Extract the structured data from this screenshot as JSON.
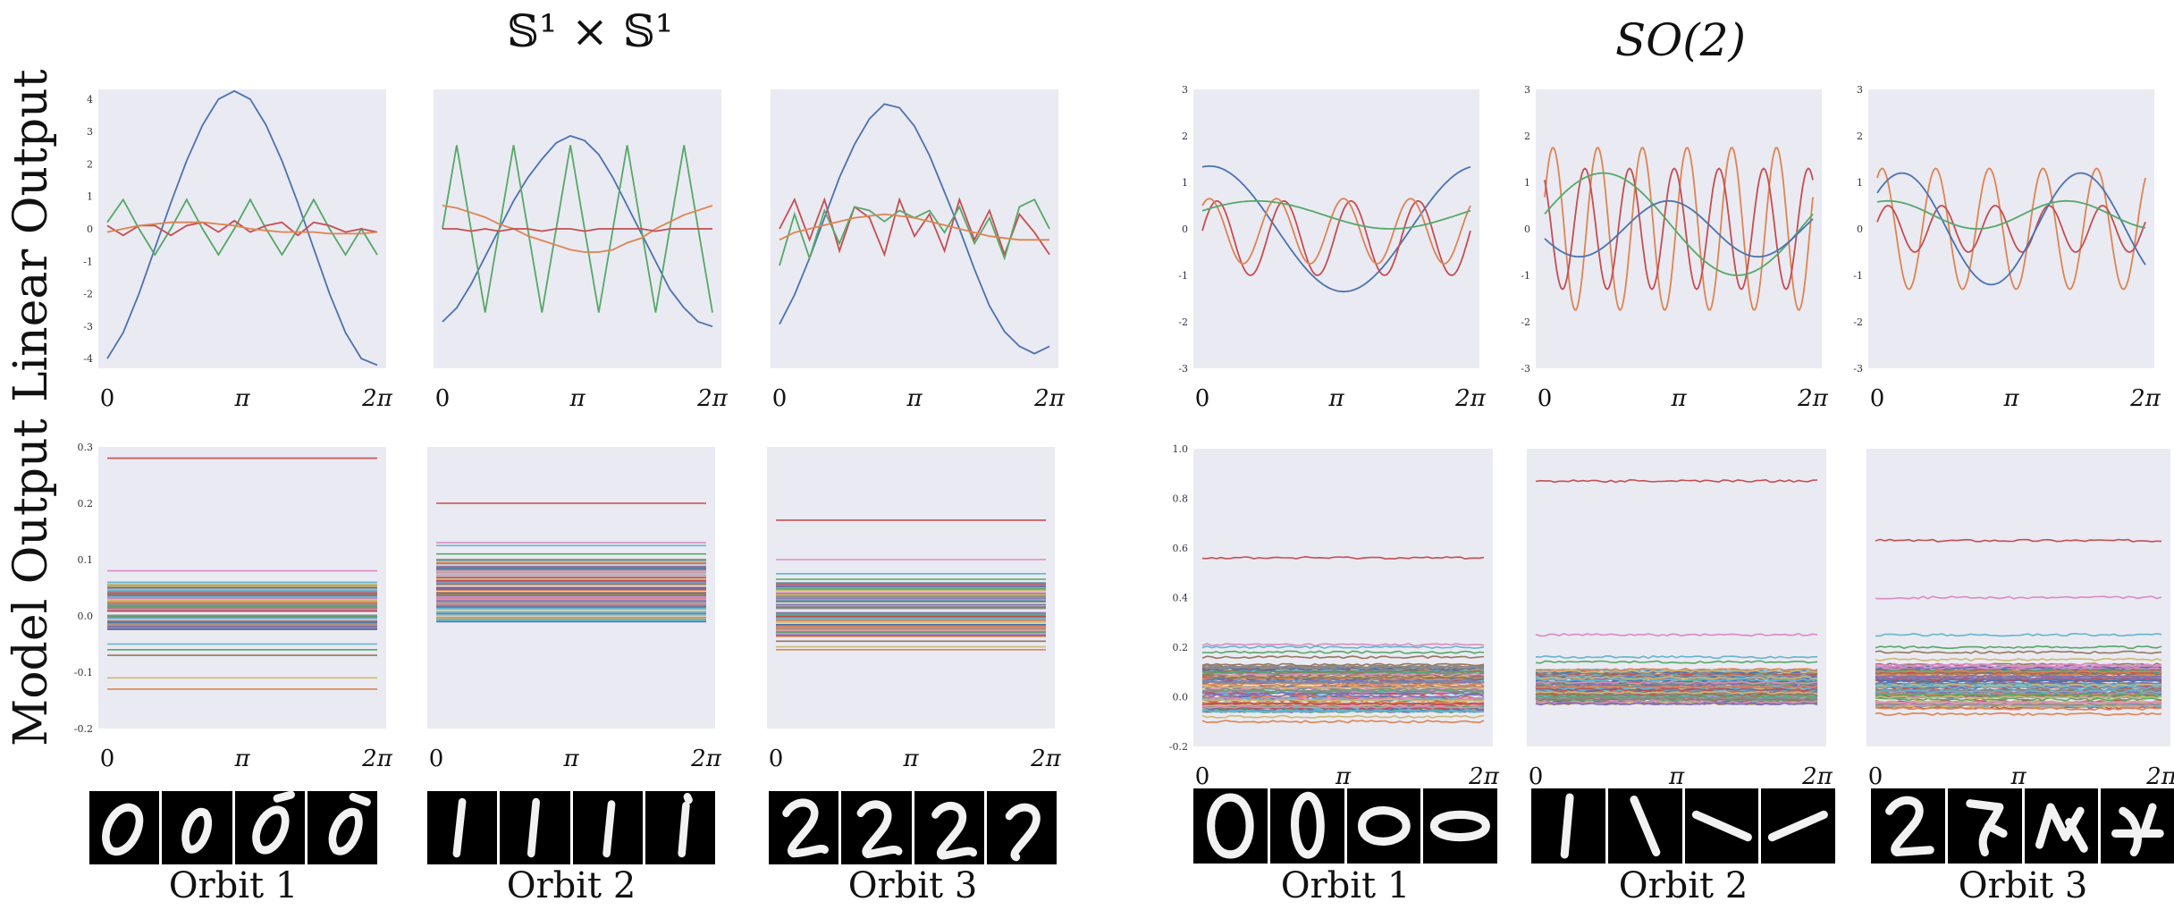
{
  "figure": {
    "left_title": "𝕊¹ × 𝕊¹",
    "right_title": "SO(2)",
    "row_labels": [
      "Linear Output",
      "Model Output"
    ],
    "orbit_labels": [
      "Orbit 1",
      "Orbit 2",
      "Orbit 3"
    ],
    "x_ticks": [
      "0",
      "π",
      "2π"
    ]
  },
  "colors": {
    "plot_bg": "#eaeaf2",
    "series": [
      "#4c72b0",
      "#dd8452",
      "#55a868",
      "#c44e52",
      "#8172b3",
      "#937860",
      "#da8bc3",
      "#8c8c8c",
      "#ccb974",
      "#64b5cd"
    ]
  },
  "chart_data": [
    {
      "id": "lin-s1-1",
      "type": "line",
      "ylim": [
        -4.3,
        4.3
      ],
      "yticks": [
        "4",
        "3",
        "2",
        "1",
        "0",
        "-1",
        "-2",
        "-3",
        "-4"
      ],
      "series": [
        {
          "color": "#4c72b0",
          "values": [
            -4,
            -3.2,
            -2.0,
            -0.6,
            0.8,
            2.1,
            3.2,
            4.0,
            4.25,
            4.0,
            3.2,
            2.1,
            0.8,
            -0.6,
            -2.0,
            -3.2,
            -4.0,
            -4.2
          ]
        },
        {
          "color": "#55a868",
          "values": [
            0.2,
            0.9,
            0,
            -0.8,
            0,
            0.9,
            0,
            -0.8,
            0,
            0.9,
            0,
            -0.8,
            0,
            0.9,
            0,
            -0.8,
            0,
            -0.8
          ]
        },
        {
          "color": "#c44e52",
          "values": [
            0.1,
            -0.2,
            0.1,
            0.1,
            -0.2,
            0.1,
            0.2,
            -0.1,
            0.25,
            -0.1,
            0.1,
            0.2,
            -0.2,
            0.2,
            0.1,
            -0.1,
            0,
            -0.1
          ]
        },
        {
          "color": "#dd8452",
          "values": [
            -0.1,
            0,
            0.1,
            0.15,
            0.2,
            0.2,
            0.2,
            0.15,
            0.1,
            0,
            -0.05,
            -0.1,
            -0.1,
            -0.1,
            -0.15,
            -0.15,
            -0.15,
            -0.1
          ]
        }
      ]
    },
    {
      "id": "lin-s1-2",
      "type": "line",
      "ylim": [
        -3,
        3
      ],
      "yticks": [],
      "series": [
        {
          "color": "#4c72b0",
          "values": [
            -2.0,
            -1.7,
            -1.2,
            -0.6,
            0.0,
            0.6,
            1.1,
            1.5,
            1.85,
            2.0,
            1.9,
            1.6,
            1.1,
            0.5,
            -0.1,
            -0.7,
            -1.3,
            -1.7,
            -2.0,
            -2.1
          ]
        },
        {
          "color": "#55a868",
          "values": [
            0,
            1.8,
            0,
            -1.8,
            0,
            1.8,
            0,
            -1.8,
            0,
            1.8,
            0,
            -1.8,
            0,
            1.8,
            0,
            -1.8,
            0,
            1.8,
            0,
            -1.8
          ]
        },
        {
          "color": "#dd8452",
          "values": [
            0.5,
            0.45,
            0.35,
            0.25,
            0.1,
            0,
            -0.15,
            -0.25,
            -0.35,
            -0.45,
            -0.5,
            -0.5,
            -0.45,
            -0.3,
            -0.2,
            0,
            0.15,
            0.3,
            0.4,
            0.5
          ]
        },
        {
          "color": "#c44e52",
          "values": [
            0,
            0,
            -0.05,
            0,
            -0.05,
            0,
            0,
            -0.05,
            0,
            0,
            -0.05,
            0,
            0,
            0,
            0,
            -0.05,
            0,
            0,
            0,
            0
          ]
        }
      ]
    },
    {
      "id": "lin-s1-3",
      "type": "line",
      "ylim": [
        -3.8,
        3.8
      ],
      "yticks": [],
      "series": [
        {
          "color": "#4c72b0",
          "values": [
            -2.6,
            -1.8,
            -0.8,
            0.3,
            1.4,
            2.3,
            3.0,
            3.4,
            3.3,
            2.8,
            2.0,
            1.0,
            0,
            -1.1,
            -2.1,
            -2.8,
            -3.2,
            -3.4,
            -3.2
          ]
        },
        {
          "color": "#c44e52",
          "values": [
            0,
            0.8,
            -0.3,
            0.8,
            -0.6,
            0.6,
            0.3,
            -0.7,
            0.8,
            -0.2,
            0.4,
            -0.6,
            0.8,
            -0.3,
            0.5,
            -0.7,
            0.4,
            -0.1,
            -0.7
          ]
        },
        {
          "color": "#55a868",
          "values": [
            -1.0,
            0.4,
            -0.8,
            0.5,
            -0.4,
            0.6,
            0.5,
            0.2,
            0.5,
            0.3,
            0.5,
            -0.1,
            0.6,
            -0.4,
            0.3,
            -0.8,
            0.6,
            0.8,
            0
          ]
        },
        {
          "color": "#dd8452",
          "values": [
            -0.3,
            -0.1,
            0,
            0.1,
            0.2,
            0.3,
            0.35,
            0.4,
            0.35,
            0.3,
            0.2,
            0.1,
            0,
            -0.1,
            -0.2,
            -0.25,
            -0.3,
            -0.3,
            -0.3
          ]
        }
      ]
    },
    {
      "id": "lin-so2-1",
      "type": "line",
      "ylim": [
        -3,
        3
      ],
      "yticks": [
        "3",
        "2",
        "1",
        "0",
        "-1",
        "-2",
        "-3"
      ],
      "wave": true,
      "series": [
        {
          "color": "#4c72b0",
          "amp": 1.35,
          "freq": 2,
          "phase": 1.4,
          "offset": 0
        },
        {
          "color": "#c44e52",
          "amp": 0.8,
          "freq": 8,
          "phase": 0.2,
          "offset": -0.2
        },
        {
          "color": "#dd8452",
          "amp": 0.7,
          "freq": 8,
          "phase": 0.9,
          "offset": -0.05
        },
        {
          "color": "#55a868",
          "amp": 0.3,
          "freq": 2,
          "phase": 0.3,
          "offset": 0.3
        }
      ]
    },
    {
      "id": "lin-so2-2",
      "type": "line",
      "ylim": [
        -3,
        3
      ],
      "yticks": [
        "3",
        "2",
        "1",
        "0",
        "-1",
        "-2",
        "-3"
      ],
      "wave": true,
      "series": [
        {
          "color": "#dd8452",
          "amp": 1.75,
          "freq": 12,
          "phase": 0.4,
          "offset": 0
        },
        {
          "color": "#c44e52",
          "amp": 1.3,
          "freq": 12,
          "phase": 2.2,
          "offset": 0
        },
        {
          "color": "#55a868",
          "amp": 1.1,
          "freq": 2,
          "phase": 0.2,
          "offset": 0.1
        },
        {
          "color": "#4c72b0",
          "amp": 0.6,
          "freq": 3,
          "phase": 3.5,
          "offset": 0
        }
      ]
    },
    {
      "id": "lin-so2-3",
      "type": "line",
      "ylim": [
        -3,
        3
      ],
      "yticks": [
        "3",
        "2",
        "1",
        "0",
        "-1",
        "-2",
        "-3"
      ],
      "wave": true,
      "series": [
        {
          "color": "#dd8452",
          "amp": 1.3,
          "freq": 10,
          "phase": 1.0,
          "offset": 0
        },
        {
          "color": "#c44e52",
          "amp": 0.5,
          "freq": 10,
          "phase": 0.3,
          "offset": 0
        },
        {
          "color": "#4c72b0",
          "amp": 1.2,
          "freq": 3,
          "phase": 0.7,
          "offset": 0
        },
        {
          "color": "#55a868",
          "amp": 0.3,
          "freq": 3,
          "phase": 1.2,
          "offset": 0.3
        }
      ]
    },
    {
      "id": "mod-s1-1",
      "type": "line",
      "ylim": [
        -0.2,
        0.3
      ],
      "yticks": [
        "0.3",
        "0.2",
        "0.1",
        "0.0",
        "-0.1",
        "-0.2"
      ],
      "flat": true,
      "levels": [
        0.28,
        0.08,
        -0.05,
        -0.06,
        -0.07,
        -0.11,
        -0.13
      ],
      "band": [
        -0.025,
        0.06
      ],
      "band_count": 80
    },
    {
      "id": "mod-s1-2",
      "type": "line",
      "ylim": [
        -0.2,
        0.3
      ],
      "yticks": [],
      "flat": true,
      "levels": [
        0.2,
        0.13,
        0.125,
        0.11,
        0.1
      ],
      "band": [
        -0.015,
        0.1
      ],
      "band_count": 80
    },
    {
      "id": "mod-s1-3",
      "type": "line",
      "ylim": [
        -0.2,
        0.3
      ],
      "yticks": [],
      "flat": true,
      "levels": [
        0.17,
        0.1,
        0.075,
        0.065,
        -0.045,
        -0.055,
        -0.06
      ],
      "band": [
        -0.04,
        0.06
      ],
      "band_count": 80
    },
    {
      "id": "mod-so2-1",
      "type": "line",
      "ylim": [
        -0.2,
        1.0
      ],
      "yticks": [
        "1.0",
        "0.8",
        "0.6",
        "0.4",
        "0.2",
        "0.0",
        "-0.2"
      ],
      "flat": true,
      "noisy": true,
      "levels": [
        0.56,
        0.21,
        0.2,
        0.18,
        0.16,
        -0.08,
        -0.1
      ],
      "band": [
        -0.06,
        0.13
      ],
      "band_count": 90
    },
    {
      "id": "mod-so2-2",
      "type": "line",
      "ylim": [
        -0.2,
        1.0
      ],
      "yticks": [],
      "flat": true,
      "noisy": true,
      "levels": [
        0.87,
        0.25,
        0.16,
        0.14
      ],
      "band": [
        -0.03,
        0.11
      ],
      "band_count": 90
    },
    {
      "id": "mod-so2-3",
      "type": "line",
      "ylim": [
        -0.2,
        1.0
      ],
      "yticks": [],
      "flat": true,
      "noisy": true,
      "levels": [
        0.63,
        0.4,
        0.25,
        0.2,
        0.18,
        0.15,
        -0.07
      ],
      "band": [
        -0.05,
        0.13
      ],
      "band_count": 90
    }
  ]
}
